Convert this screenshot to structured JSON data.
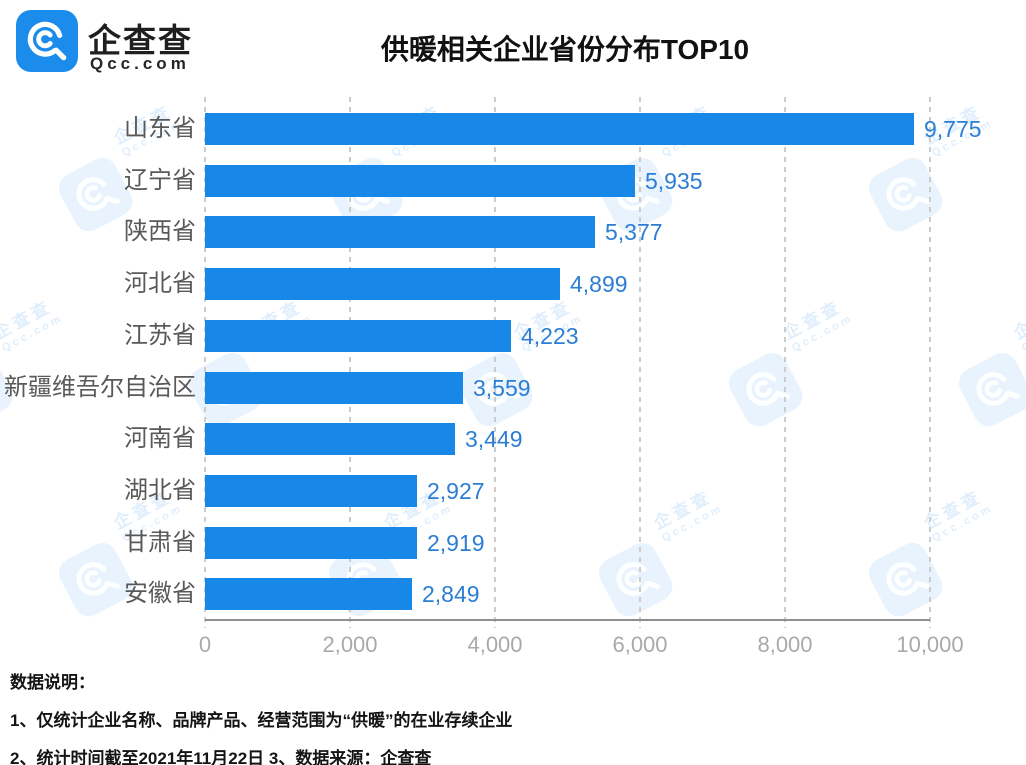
{
  "header": {
    "logo_name": "企查查",
    "logo_domain": "Qcc.com",
    "title": "供暖相关企业省份分布TOP10"
  },
  "chart_data": {
    "type": "bar",
    "orientation": "horizontal",
    "title": "供暖相关企业省份分布TOP10",
    "categories": [
      "山东省",
      "辽宁省",
      "陕西省",
      "河北省",
      "江苏省",
      "新疆维吾尔自治区",
      "河南省",
      "湖北省",
      "甘肃省",
      "安徽省"
    ],
    "values": [
      9775,
      5935,
      5377,
      4899,
      4223,
      3559,
      3449,
      2927,
      2919,
      2849
    ],
    "value_labels": [
      "9,775",
      "5,935",
      "5,377",
      "4,899",
      "4,223",
      "3,559",
      "3,449",
      "2,927",
      "2,919",
      "2,849"
    ],
    "xlim": [
      0,
      10000
    ],
    "x_tick_values": [
      0,
      2000,
      4000,
      6000,
      8000,
      10000
    ],
    "x_tick_labels": [
      "0",
      "2,000",
      "4,000",
      "6,000",
      "8,000",
      "10,000"
    ],
    "grid": "vertical-dashed",
    "legend": "none",
    "bar_color": "#1787e8",
    "value_label_color": "#2b7ed3",
    "category_label_color": "#595959",
    "gridline_color": "#cccccc",
    "axis_line_color": "#8f8f8f",
    "tick_label_color": "#a9a9a9"
  },
  "watermark": {
    "line1": "企查查",
    "line2": "Qcc.com"
  },
  "footnotes": {
    "heading": "数据说明：",
    "line1": "1、仅统计企业名称、品牌产品、经营范围为“供暖”的在业存续企业",
    "line2": "2、统计时间截至2021年11月22日  3、数据来源：企查查"
  }
}
